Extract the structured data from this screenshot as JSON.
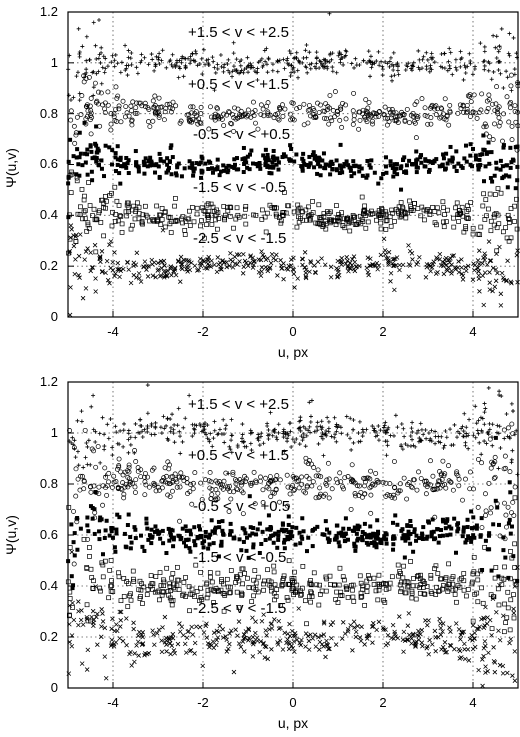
{
  "chart_data": [
    {
      "type": "scatter",
      "xlabel": "u, px",
      "ylabel": "Ψ(u,v)",
      "xlim": [
        -5,
        5
      ],
      "ylim": [
        0,
        1.2
      ],
      "xticks": [
        "-4",
        "-2",
        "0",
        "2",
        "4"
      ],
      "yticks": [
        "0",
        "0.2",
        "0.4",
        "0.6",
        "0.8",
        "1",
        "1.2"
      ],
      "grid": true,
      "series": [
        {
          "name": "+1.5 < v < +2.5",
          "marker": "plus",
          "level": 1.0,
          "spread": 0.022
        },
        {
          "name": "+0.5 < v < +1.5",
          "marker": "open-circle",
          "level": 0.8,
          "spread": 0.025
        },
        {
          "name": "-0.5 < v < +0.5",
          "marker": "filled-square",
          "level": 0.6,
          "spread": 0.02
        },
        {
          "name": "-1.5 < v < -0.5",
          "marker": "open-square",
          "level": 0.4,
          "spread": 0.022
        },
        {
          "name": "-2.5 < v < -1.5",
          "marker": "cross",
          "level": 0.2,
          "spread": 0.022
        }
      ]
    },
    {
      "type": "scatter",
      "xlabel": "u, px",
      "ylabel": "Ψ(u,v)",
      "xlim": [
        -5,
        5
      ],
      "ylim": [
        0,
        1.2
      ],
      "xticks": [
        "-4",
        "-2",
        "0",
        "2",
        "4"
      ],
      "yticks": [
        "0",
        "0.2",
        "0.4",
        "0.6",
        "0.8",
        "1",
        "1.2"
      ],
      "grid": true,
      "series": [
        {
          "name": "+1.5 < v < +2.5",
          "marker": "plus",
          "level": 1.0,
          "spread": 0.03
        },
        {
          "name": "+0.5 < v < +1.5",
          "marker": "open-circle",
          "level": 0.8,
          "spread": 0.035
        },
        {
          "name": "-0.5 < v < +0.5",
          "marker": "filled-square",
          "level": 0.6,
          "spread": 0.03
        },
        {
          "name": "-1.5 < v < -0.5",
          "marker": "open-square",
          "level": 0.4,
          "spread": 0.035
        },
        {
          "name": "-2.5 < v < -1.5",
          "marker": "cross",
          "level": 0.2,
          "spread": 0.035
        }
      ]
    }
  ]
}
